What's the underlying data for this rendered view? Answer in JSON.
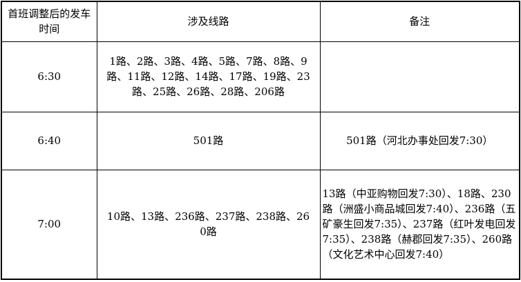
{
  "headers": [
    "首班调整后的发车时间",
    "涉及线路",
    "备注"
  ],
  "rows": [
    {
      "time": "6:30",
      "routes": "1路、2路、3路、4路、5路、7路、8路、9路、11路、12路、14路、17路、19路、23路、25路、26路、28路、206路",
      "note": ""
    },
    {
      "time": "6:40",
      "routes": "501路",
      "note": "501路（河北办事处回发7:30）"
    },
    {
      "time": "7:00",
      "routes": "10路、13路、236路、237路、238路、260路",
      "note": "13路（中亚购物回发7:30）、18路、230路（洲盛小商品城回发7:40）、236路（五矿豪生回发7:35）、237路（红叶发电回发7:35）、238路（赫郡回发7:35）、260路（文化艺术中心回发7:40）"
    }
  ]
}
